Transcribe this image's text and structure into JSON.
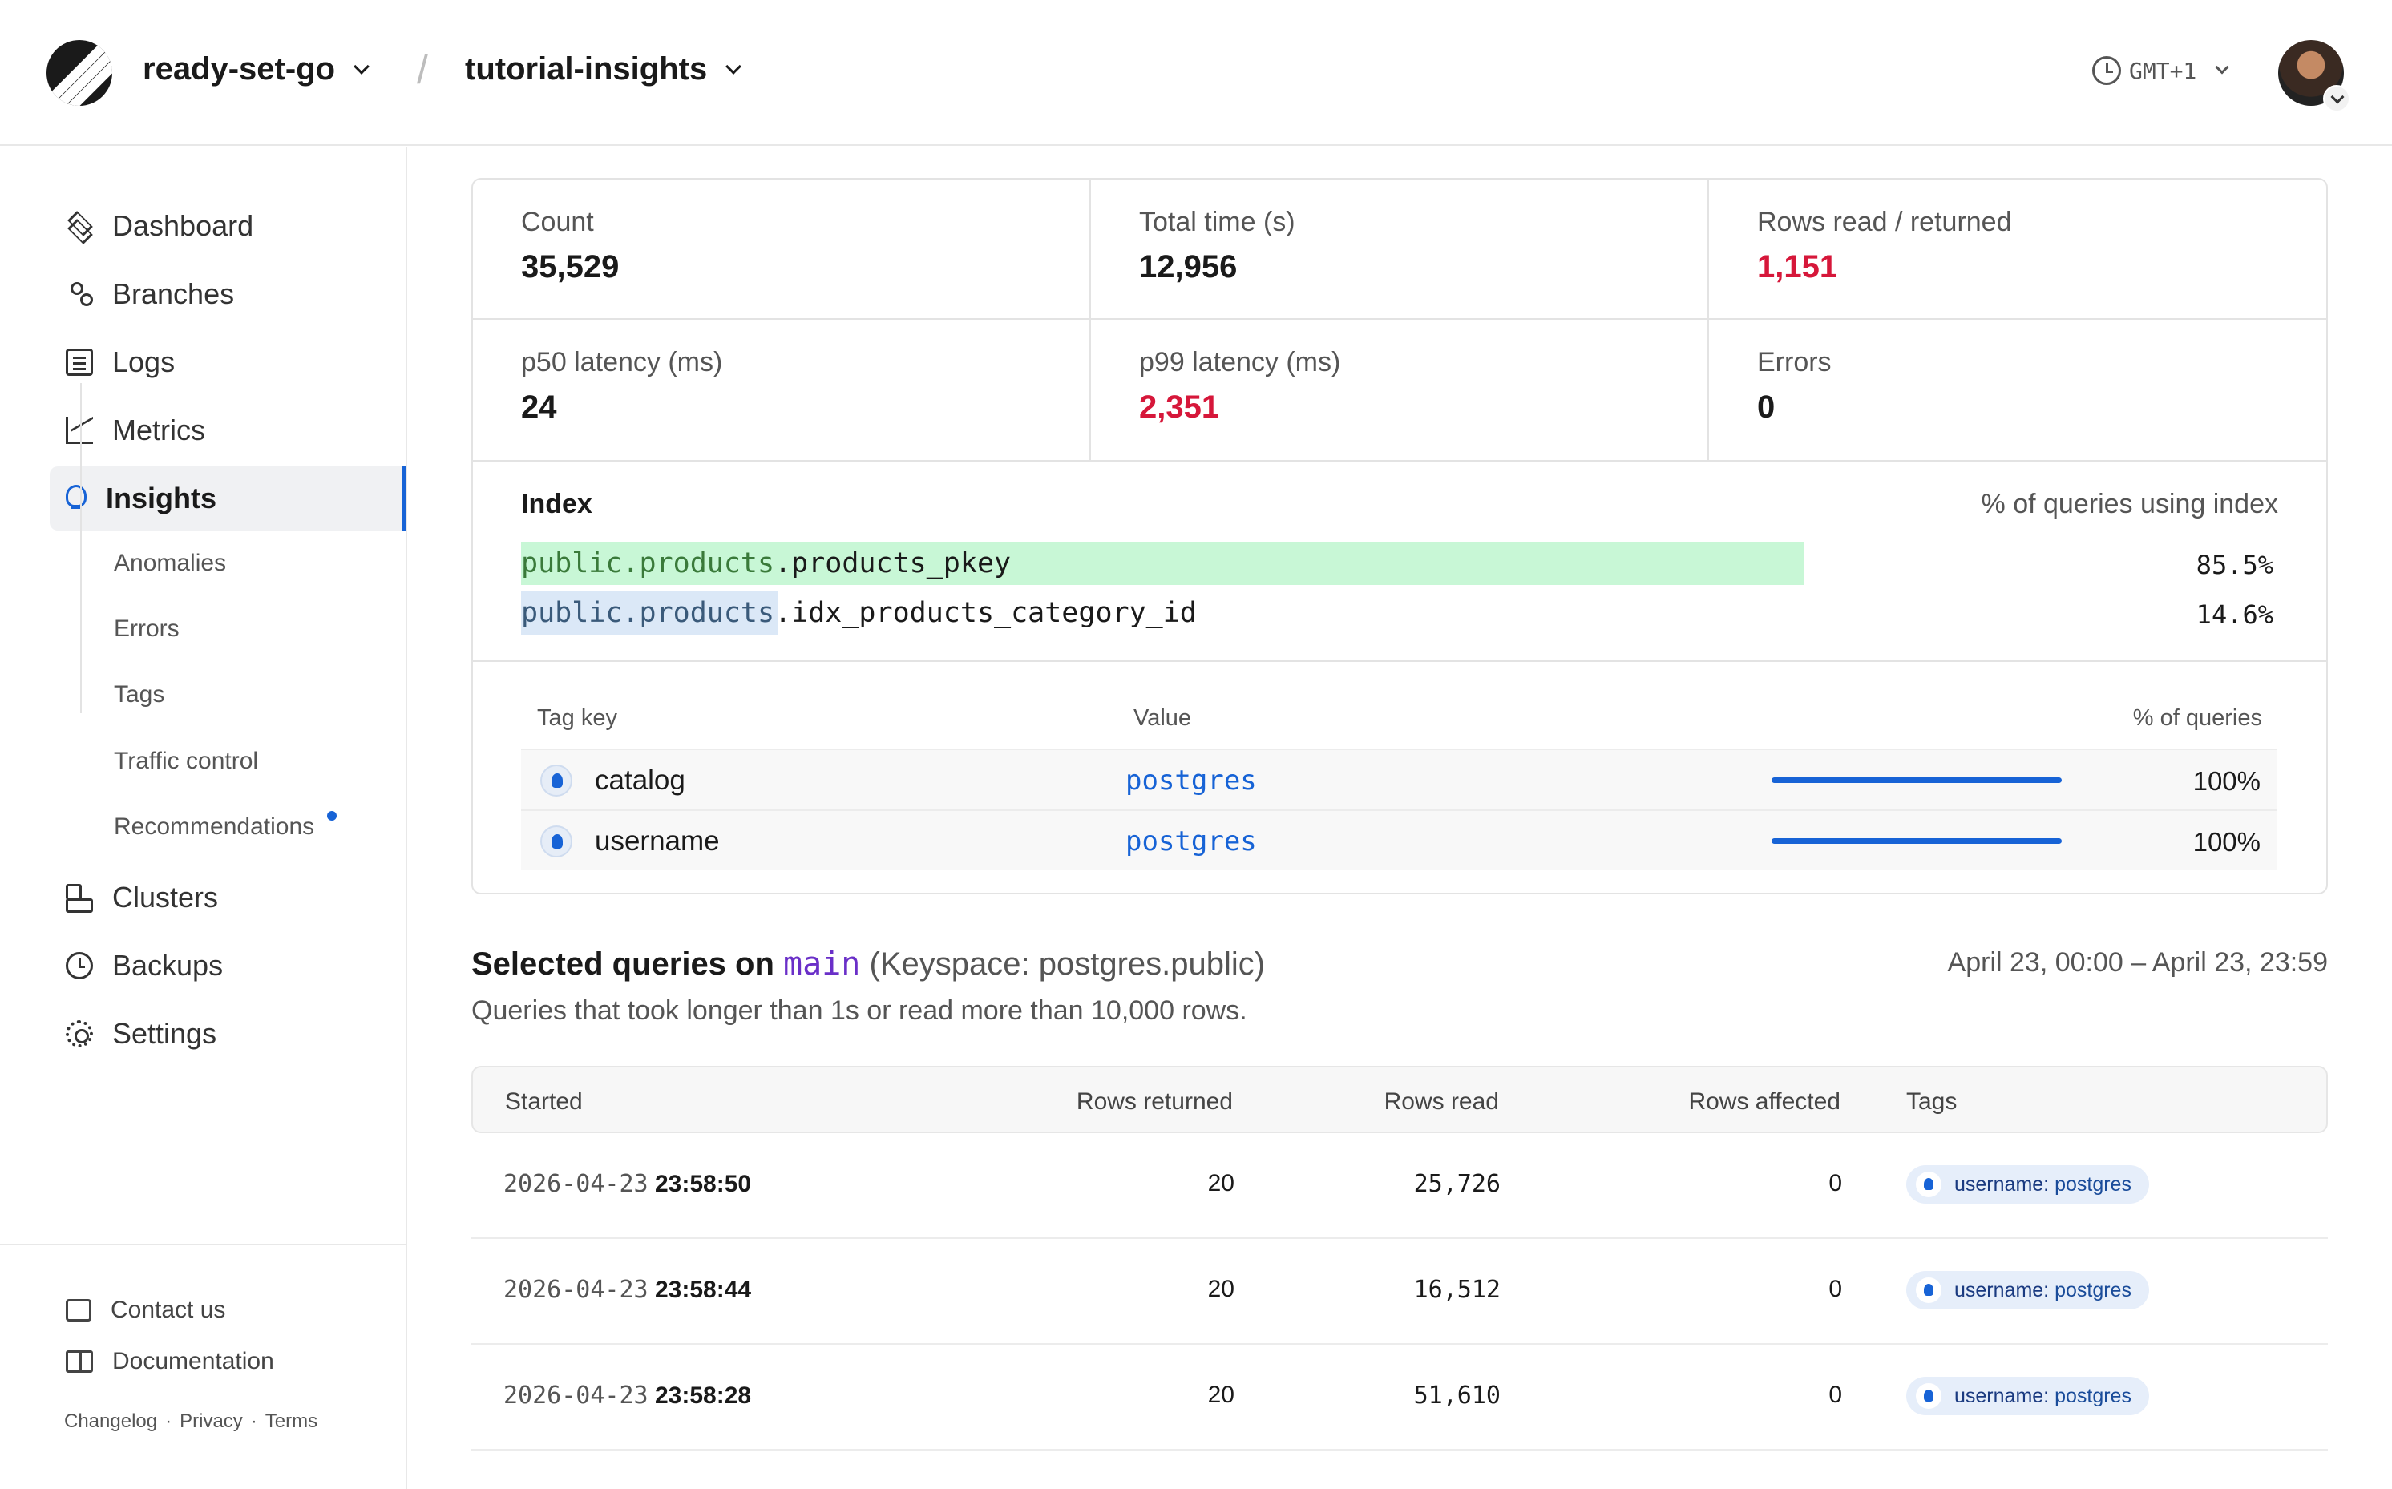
{
  "header": {
    "org": "ready-set-go",
    "database": "tutorial-insights",
    "timezone": "GMT+1"
  },
  "sidebar": {
    "items": [
      {
        "label": "Dashboard",
        "icon": "layers-icon"
      },
      {
        "label": "Branches",
        "icon": "branch-icon"
      },
      {
        "label": "Logs",
        "icon": "logs-icon"
      },
      {
        "label": "Metrics",
        "icon": "metrics-icon"
      },
      {
        "label": "Insights",
        "icon": "lightbulb-icon",
        "active": true
      },
      {
        "label": "Clusters",
        "icon": "clusters-icon"
      },
      {
        "label": "Backups",
        "icon": "backup-icon"
      },
      {
        "label": "Settings",
        "icon": "gear-icon"
      }
    ],
    "subitems": [
      "Anomalies",
      "Errors",
      "Tags",
      "Traffic control",
      "Recommendations"
    ],
    "footer": {
      "contact": "Contact us",
      "docs": "Documentation",
      "legal": [
        "Changelog",
        "Privacy",
        "Terms"
      ],
      "separator": "·"
    }
  },
  "stats": {
    "count": {
      "label": "Count",
      "value": "35,529"
    },
    "total_time": {
      "label": "Total time (s)",
      "value": "12,956"
    },
    "rows_ratio": {
      "label": "Rows read / returned",
      "value": "1,151"
    },
    "p50": {
      "label": "p50 latency (ms)",
      "value": "24"
    },
    "p99": {
      "label": "p99 latency (ms)",
      "value": "2,351"
    },
    "errors": {
      "label": "Errors",
      "value": "0"
    }
  },
  "indexes": {
    "header_left": "Index",
    "header_right": "% of queries using index",
    "rows": [
      {
        "schema": "public.products",
        "name": ".products_pkey",
        "pct": "85.5%",
        "fraction": 0.855,
        "color": "#c8f7d6"
      },
      {
        "schema": "public.products",
        "name": ".idx_products_category_id",
        "pct": "14.6%",
        "fraction": 0.146,
        "color": "#dbe8f7"
      }
    ]
  },
  "tags": {
    "headers": {
      "key": "Tag key",
      "value": "Value",
      "pct": "% of queries"
    },
    "rows": [
      {
        "key": "catalog",
        "value": "postgres",
        "pct": "100%",
        "fraction": 1.0
      },
      {
        "key": "username",
        "value": "postgres",
        "pct": "100%",
        "fraction": 1.0
      }
    ]
  },
  "selected": {
    "title_prefix": "Selected queries on",
    "branch": "main",
    "keyspace": "(Keyspace: postgres.public)",
    "range": "April 23, 00:00 – April 23, 23:59",
    "subtitle": "Queries that took longer than 1s or read more than 10,000 rows.",
    "headers": {
      "started": "Started",
      "returned": "Rows returned",
      "read": "Rows read",
      "affected": "Rows affected",
      "tags": "Tags"
    },
    "rows": [
      {
        "date": "2026-04-23",
        "time": "23:58:50",
        "returned": "20",
        "read": "25,726",
        "affected": "0",
        "tag_key": "username:",
        "tag_val": "postgres"
      },
      {
        "date": "2026-04-23",
        "time": "23:58:44",
        "returned": "20",
        "read": "16,512",
        "affected": "0",
        "tag_key": "username:",
        "tag_val": "postgres"
      },
      {
        "date": "2026-04-23",
        "time": "23:58:28",
        "returned": "20",
        "read": "51,610",
        "affected": "0",
        "tag_key": "username:",
        "tag_val": "postgres"
      }
    ]
  },
  "colors": {
    "accent": "#1763d6",
    "danger": "#d6173a",
    "branch": "#6a2fc8"
  }
}
